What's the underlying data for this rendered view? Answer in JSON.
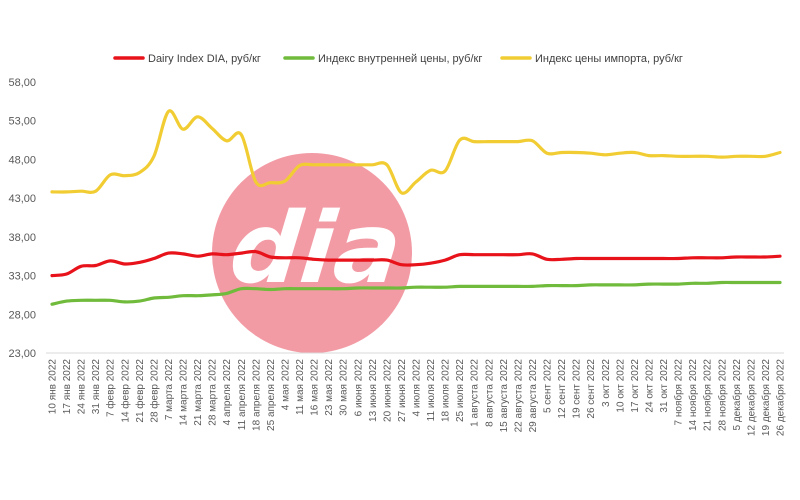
{
  "chart_data": {
    "type": "line",
    "ylim": [
      23,
      58
    ],
    "yticks": [
      "23,00",
      "28,00",
      "33,00",
      "38,00",
      "43,00",
      "48,00",
      "53,00",
      "58,00"
    ],
    "grid": false,
    "legend_position": "top",
    "watermark": "dia",
    "categories": [
      "10 янв 2022",
      "17 янв 2022",
      "24 янв 2022",
      "31 янв 2022",
      "7 февр 2022",
      "14 февр 2022",
      "21 февр 2022",
      "28 февр 2022",
      "7 марта 2022",
      "14 марта 2022",
      "21 марта 2022",
      "28 марта 2022",
      "4 апреля 2022",
      "11 апреля 2022",
      "18 апреля 2022",
      "25 апреля 2022",
      "4 мая 2022",
      "11 мая 2022",
      "16 мая 2022",
      "23 мая 2022",
      "30 мая 2022",
      "6 июня 2022",
      "13 июня 2022",
      "20 июня 2022",
      "27 июня 2022",
      "4 июля 2022",
      "11 июля 2022",
      "18 июля 2022",
      "25 июля 2022",
      "1 августа 2022",
      "8 августа 2022",
      "15 августа 2022",
      "22 августа 2022",
      "29 августа 2022",
      "5 сент 2022",
      "12 сент 2022",
      "19 сент 2022",
      "26 сент 2022",
      "3 окт 2022",
      "10 окт 2022",
      "17 окт 2022",
      "24 окт 2022",
      "31 окт 2022",
      "7 ноября 2022",
      "14 ноября 2022",
      "21 ноября 2022",
      "28 ноября 2022",
      "5 декабря 2022",
      "12 декабря 2022",
      "19 декабря 2022",
      "26 декабря 2022"
    ],
    "series": [
      {
        "name": "Dairy Index DIA,  руб/кг",
        "color": "#e8121b",
        "values": [
          33.0,
          33.2,
          34.2,
          34.3,
          34.9,
          34.5,
          34.7,
          35.2,
          35.9,
          35.8,
          35.5,
          35.8,
          35.7,
          35.9,
          36.1,
          35.4,
          35.3,
          35.3,
          35.1,
          35.0,
          35.0,
          35.0,
          35.0,
          35.0,
          34.4,
          34.4,
          34.6,
          35.0,
          35.7,
          35.7,
          35.7,
          35.7,
          35.7,
          35.8,
          35.1,
          35.1,
          35.2,
          35.2,
          35.2,
          35.2,
          35.2,
          35.2,
          35.2,
          35.2,
          35.3,
          35.3,
          35.3,
          35.4,
          35.4,
          35.4,
          35.5
        ]
      },
      {
        "name": "Индекс внутренней цены, руб/кг",
        "color": "#70bb3b",
        "values": [
          29.3,
          29.7,
          29.8,
          29.8,
          29.8,
          29.6,
          29.7,
          30.1,
          30.2,
          30.4,
          30.4,
          30.5,
          30.7,
          31.3,
          31.3,
          31.2,
          31.3,
          31.3,
          31.3,
          31.3,
          31.3,
          31.4,
          31.4,
          31.4,
          31.4,
          31.5,
          31.5,
          31.5,
          31.6,
          31.6,
          31.6,
          31.6,
          31.6,
          31.6,
          31.7,
          31.7,
          31.7,
          31.8,
          31.8,
          31.8,
          31.8,
          31.9,
          31.9,
          31.9,
          32.0,
          32.0,
          32.1,
          32.1,
          32.1,
          32.1,
          32.1
        ]
      },
      {
        "name": "Индекс цены импорта, руб/кг",
        "color": "#f1cd33",
        "values": [
          43.8,
          43.8,
          43.9,
          43.9,
          46.0,
          45.9,
          46.3,
          48.4,
          54.2,
          51.9,
          53.5,
          52.0,
          50.4,
          51.2,
          45.1,
          45.0,
          45.2,
          47.2,
          47.3,
          47.3,
          47.3,
          47.3,
          47.3,
          47.3,
          43.7,
          45.1,
          46.6,
          46.5,
          50.5,
          50.3,
          50.3,
          50.3,
          50.3,
          50.4,
          48.8,
          48.9,
          48.9,
          48.8,
          48.6,
          48.8,
          48.9,
          48.5,
          48.5,
          48.4,
          48.4,
          48.4,
          48.3,
          48.4,
          48.4,
          48.4,
          48.9
        ]
      }
    ]
  }
}
